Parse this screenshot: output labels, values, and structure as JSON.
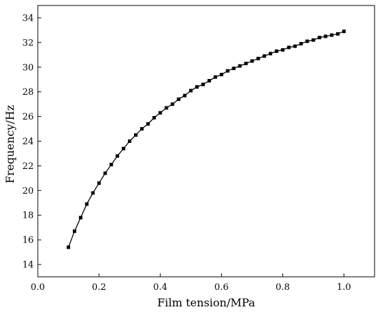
{
  "chart_data": {
    "type": "line",
    "title": "",
    "xlabel": "Film tension/MPa",
    "ylabel": "Frequency/Hz",
    "xlim": [
      0.0,
      1.1
    ],
    "ylim": [
      13,
      35
    ],
    "x_ticks": [
      0.0,
      0.2,
      0.4,
      0.6,
      0.8,
      1.0
    ],
    "x_tick_labels": [
      "0.0",
      "0.2",
      "0.4",
      "0.6",
      "0.8",
      "1.0"
    ],
    "y_ticks": [
      14,
      16,
      18,
      20,
      22,
      24,
      26,
      28,
      30,
      32,
      34
    ],
    "y_tick_labels": [
      "14",
      "16",
      "18",
      "20",
      "22",
      "24",
      "26",
      "28",
      "30",
      "32",
      "34"
    ],
    "grid": false,
    "legend": "none",
    "line_color": "#000000",
    "marker": "square",
    "series": [
      {
        "x": [
          0.1,
          0.12,
          0.14,
          0.16,
          0.18,
          0.2,
          0.22,
          0.24,
          0.26,
          0.28,
          0.3,
          0.32,
          0.34,
          0.36,
          0.38,
          0.4,
          0.42,
          0.44,
          0.46,
          0.48,
          0.5,
          0.52,
          0.54,
          0.56,
          0.58,
          0.6,
          0.62,
          0.64,
          0.66,
          0.68,
          0.7,
          0.72,
          0.74,
          0.76,
          0.78,
          0.8,
          0.82,
          0.84,
          0.86,
          0.88,
          0.9,
          0.92,
          0.94,
          0.96,
          0.98,
          1.0
        ],
        "values": [
          15.4,
          16.7,
          17.8,
          18.9,
          19.8,
          20.6,
          21.4,
          22.1,
          22.8,
          23.4,
          24.0,
          24.5,
          25.0,
          25.4,
          25.9,
          26.3,
          26.7,
          27.0,
          27.4,
          27.7,
          28.1,
          28.4,
          28.6,
          28.9,
          29.2,
          29.4,
          29.7,
          29.9,
          30.1,
          30.3,
          30.5,
          30.7,
          30.9,
          31.1,
          31.3,
          31.4,
          31.6,
          31.7,
          31.9,
          32.1,
          32.2,
          32.4,
          32.5,
          32.6,
          32.7,
          32.9
        ]
      }
    ]
  }
}
